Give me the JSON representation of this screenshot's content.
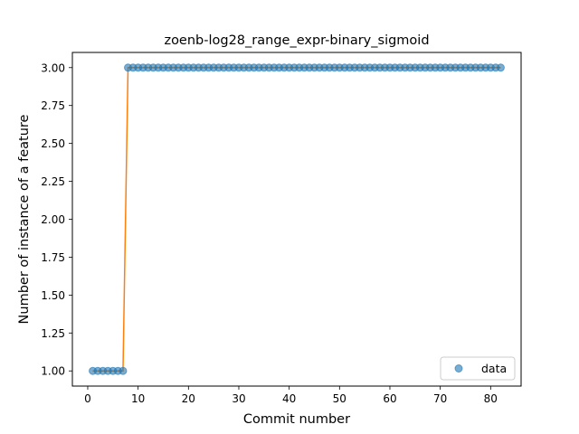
{
  "chart_data": {
    "type": "scatter",
    "title": "zoenb-log28_range_expr-binary_sigmoid",
    "xlabel": "Commit number",
    "ylabel": "Number of instance of a feature",
    "xlim": [
      -3.05,
      86.05
    ],
    "ylim": [
      0.9,
      3.1
    ],
    "xticks": [
      0,
      10,
      20,
      30,
      40,
      50,
      60,
      70,
      80
    ],
    "yticks": [
      1.0,
      1.25,
      1.5,
      1.75,
      2.0,
      2.25,
      2.5,
      2.75,
      3.0
    ],
    "ytick_labels": [
      "1.00",
      "1.25",
      "1.50",
      "1.75",
      "2.00",
      "2.25",
      "2.50",
      "2.75",
      "3.00"
    ],
    "legend": {
      "position": "lower-right",
      "entries": [
        "data"
      ]
    },
    "grid": false,
    "series": [
      {
        "name": "data",
        "kind": "scatter",
        "color": "#1f77b4",
        "x_start": 1,
        "x_end": 82,
        "y_low": 1,
        "y_high": 3,
        "step_at": 8
      },
      {
        "kind": "line",
        "color": "#ff7f0e",
        "x": [
          1,
          7,
          8,
          82
        ],
        "y": [
          1,
          1,
          3,
          3
        ]
      }
    ]
  }
}
